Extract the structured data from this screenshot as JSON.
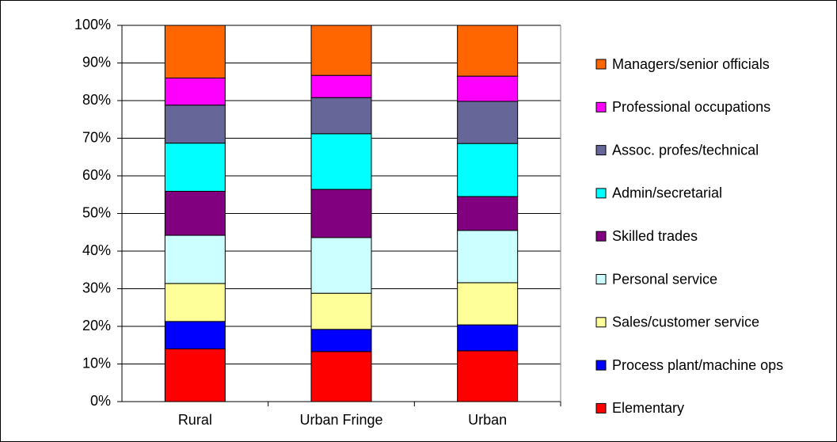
{
  "chart_data": {
    "type": "stacked-bar",
    "categories": [
      "Rural",
      "Urban Fringe",
      "Urban"
    ],
    "series": [
      {
        "name": "Elementary",
        "color": "#ff0000",
        "values": [
          14.0,
          13.3,
          13.5
        ]
      },
      {
        "name": "Process plant/machine ops",
        "color": "#0000ff",
        "values": [
          7.3,
          5.9,
          6.9
        ]
      },
      {
        "name": "Sales/customer service",
        "color": "#ffff99",
        "values": [
          10.1,
          9.6,
          11.2
        ]
      },
      {
        "name": "Personal service",
        "color": "#ccffff",
        "values": [
          12.8,
          14.8,
          13.9
        ]
      },
      {
        "name": "Skilled trades",
        "color": "#800080",
        "values": [
          11.7,
          12.8,
          9.0
        ]
      },
      {
        "name": "Admin/secretarial",
        "color": "#00ffff",
        "values": [
          12.8,
          14.8,
          14.1
        ]
      },
      {
        "name": "Assoc. profes/technical",
        "color": "#666699",
        "values": [
          10.1,
          9.6,
          11.2
        ]
      },
      {
        "name": "Professional occupations",
        "color": "#ff00ff",
        "values": [
          7.2,
          5.9,
          6.7
        ]
      },
      {
        "name": "Managers/senior officials",
        "color": "#ff6600",
        "values": [
          14.0,
          13.3,
          13.5
        ]
      }
    ],
    "ylim": [
      0,
      100
    ],
    "yticks": [
      {
        "value": 0,
        "label": "0%"
      },
      {
        "value": 10,
        "label": "10%"
      },
      {
        "value": 20,
        "label": "20%"
      },
      {
        "value": 30,
        "label": "30%"
      },
      {
        "value": 40,
        "label": "40%"
      },
      {
        "value": 50,
        "label": "50%"
      },
      {
        "value": 60,
        "label": "60%"
      },
      {
        "value": 70,
        "label": "70%"
      },
      {
        "value": 80,
        "label": "80%"
      },
      {
        "value": 90,
        "label": "90%"
      },
      {
        "value": 100,
        "label": "100%"
      }
    ],
    "grid": true,
    "legend": "right"
  }
}
